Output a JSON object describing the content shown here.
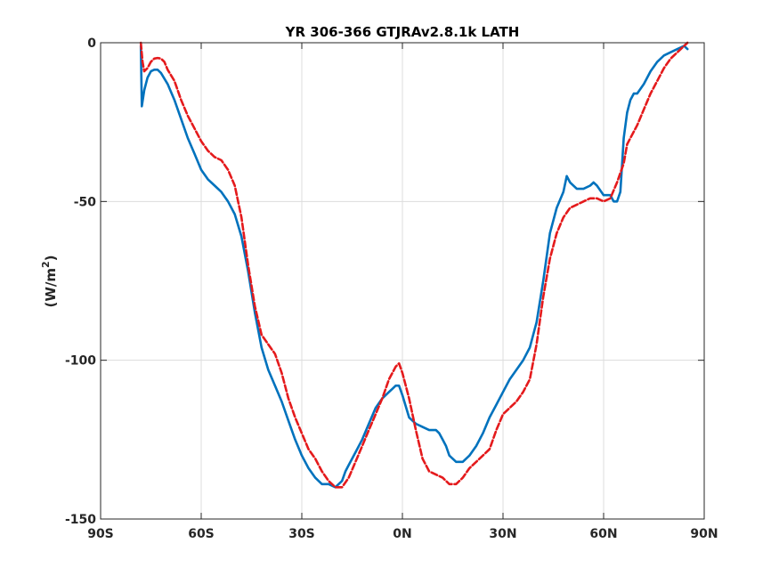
{
  "chart_data": {
    "type": "line",
    "title": "YR 306-366 GTJRAv2.8.1k LATH",
    "xlabel": "",
    "ylabel": "(W/m2)",
    "ylabel_parts": {
      "main": "(W/m",
      "sup": "2",
      "close": ")"
    },
    "xlim": [
      -90,
      90
    ],
    "ylim": [
      -150,
      0
    ],
    "grid": true,
    "x_ticks": [
      {
        "value": -90,
        "label": "90S"
      },
      {
        "value": -60,
        "label": "60S"
      },
      {
        "value": -30,
        "label": "30S"
      },
      {
        "value": 0,
        "label": "0N"
      },
      {
        "value": 30,
        "label": "30N"
      },
      {
        "value": 60,
        "label": "60N"
      },
      {
        "value": 90,
        "label": "90N"
      }
    ],
    "y_ticks": [
      {
        "value": 0,
        "label": "0"
      },
      {
        "value": -50,
        "label": "-50"
      },
      {
        "value": -100,
        "label": "-100"
      },
      {
        "value": -150,
        "label": "-150"
      }
    ],
    "series": [
      {
        "color": "#0072bd",
        "style": "solid",
        "points": [
          [
            -78,
            -1
          ],
          [
            -77.7,
            -20
          ],
          [
            -77,
            -15
          ],
          [
            -76,
            -11
          ],
          [
            -75,
            -9
          ],
          [
            -74,
            -8.5
          ],
          [
            -73,
            -8.5
          ],
          [
            -72,
            -9.5
          ],
          [
            -70,
            -13
          ],
          [
            -68,
            -18
          ],
          [
            -66,
            -24
          ],
          [
            -64,
            -30
          ],
          [
            -62,
            -35
          ],
          [
            -60,
            -40
          ],
          [
            -58,
            -43
          ],
          [
            -56,
            -45
          ],
          [
            -54,
            -47
          ],
          [
            -52,
            -50
          ],
          [
            -50,
            -54
          ],
          [
            -48,
            -61
          ],
          [
            -46,
            -72
          ],
          [
            -44,
            -85
          ],
          [
            -42,
            -96
          ],
          [
            -40,
            -103
          ],
          [
            -38,
            -108
          ],
          [
            -36,
            -113
          ],
          [
            -34,
            -119
          ],
          [
            -32,
            -125
          ],
          [
            -30,
            -130
          ],
          [
            -28,
            -134
          ],
          [
            -26,
            -137
          ],
          [
            -24,
            -139
          ],
          [
            -22,
            -139
          ],
          [
            -20,
            -140
          ],
          [
            -18,
            -138
          ],
          [
            -17,
            -135
          ],
          [
            -16,
            -133
          ],
          [
            -14,
            -129
          ],
          [
            -12,
            -125
          ],
          [
            -10,
            -120
          ],
          [
            -8,
            -115
          ],
          [
            -6,
            -112
          ],
          [
            -4,
            -110
          ],
          [
            -3,
            -109
          ],
          [
            -2,
            -108
          ],
          [
            -1,
            -108
          ],
          [
            0,
            -111
          ],
          [
            2,
            -118
          ],
          [
            4,
            -120
          ],
          [
            6,
            -121
          ],
          [
            8,
            -122
          ],
          [
            10,
            -122
          ],
          [
            11,
            -123
          ],
          [
            12,
            -125
          ],
          [
            13,
            -127
          ],
          [
            14,
            -130
          ],
          [
            16,
            -132
          ],
          [
            18,
            -132
          ],
          [
            20,
            -130
          ],
          [
            22,
            -127
          ],
          [
            24,
            -123
          ],
          [
            26,
            -118
          ],
          [
            28,
            -114
          ],
          [
            30,
            -110
          ],
          [
            32,
            -106
          ],
          [
            34,
            -103
          ],
          [
            36,
            -100
          ],
          [
            38,
            -96
          ],
          [
            40,
            -88
          ],
          [
            42,
            -75
          ],
          [
            44,
            -60
          ],
          [
            46,
            -52
          ],
          [
            48,
            -47
          ],
          [
            49,
            -42
          ],
          [
            50,
            -44
          ],
          [
            52,
            -46
          ],
          [
            54,
            -46
          ],
          [
            56,
            -45
          ],
          [
            57,
            -44
          ],
          [
            58,
            -45
          ],
          [
            60,
            -48
          ],
          [
            62,
            -48
          ],
          [
            63,
            -50
          ],
          [
            64,
            -50
          ],
          [
            65,
            -47
          ],
          [
            66,
            -30
          ],
          [
            67,
            -22
          ],
          [
            68,
            -18
          ],
          [
            69,
            -16
          ],
          [
            70,
            -16
          ],
          [
            72,
            -13
          ],
          [
            74,
            -9
          ],
          [
            76,
            -6
          ],
          [
            78,
            -4
          ],
          [
            80,
            -3
          ],
          [
            82,
            -2
          ],
          [
            84,
            -1
          ],
          [
            85,
            -2
          ]
        ]
      },
      {
        "color": "#e41a1c",
        "style": "dashed",
        "points": [
          [
            -78,
            0
          ],
          [
            -77.5,
            -6
          ],
          [
            -77,
            -9
          ],
          [
            -76,
            -8
          ],
          [
            -75,
            -6
          ],
          [
            -74,
            -5
          ],
          [
            -73,
            -4.8
          ],
          [
            -72,
            -5
          ],
          [
            -71,
            -6
          ],
          [
            -70,
            -8.5
          ],
          [
            -68,
            -12
          ],
          [
            -66,
            -18
          ],
          [
            -64,
            -23
          ],
          [
            -62,
            -27
          ],
          [
            -60,
            -31
          ],
          [
            -58,
            -34
          ],
          [
            -56,
            -36
          ],
          [
            -54,
            -37
          ],
          [
            -52,
            -40
          ],
          [
            -50,
            -45
          ],
          [
            -48,
            -55
          ],
          [
            -46,
            -70
          ],
          [
            -44,
            -83
          ],
          [
            -42,
            -92
          ],
          [
            -40,
            -95
          ],
          [
            -38,
            -98
          ],
          [
            -36,
            -104
          ],
          [
            -34,
            -112
          ],
          [
            -32,
            -118
          ],
          [
            -30,
            -123
          ],
          [
            -28,
            -128
          ],
          [
            -26,
            -131
          ],
          [
            -24,
            -135
          ],
          [
            -22,
            -138
          ],
          [
            -20,
            -140
          ],
          [
            -18,
            -140
          ],
          [
            -16,
            -137
          ],
          [
            -14,
            -132
          ],
          [
            -12,
            -127
          ],
          [
            -10,
            -122
          ],
          [
            -8,
            -117
          ],
          [
            -6,
            -112
          ],
          [
            -4,
            -106
          ],
          [
            -2,
            -102
          ],
          [
            -1,
            -101
          ],
          [
            0,
            -104
          ],
          [
            2,
            -112
          ],
          [
            4,
            -122
          ],
          [
            6,
            -131
          ],
          [
            8,
            -135
          ],
          [
            10,
            -136
          ],
          [
            12,
            -137
          ],
          [
            14,
            -139
          ],
          [
            16,
            -139
          ],
          [
            18,
            -137
          ],
          [
            20,
            -134
          ],
          [
            22,
            -132
          ],
          [
            24,
            -130
          ],
          [
            26,
            -128
          ],
          [
            28,
            -122
          ],
          [
            30,
            -117
          ],
          [
            32,
            -115
          ],
          [
            34,
            -113
          ],
          [
            36,
            -110
          ],
          [
            38,
            -106
          ],
          [
            40,
            -95
          ],
          [
            42,
            -80
          ],
          [
            44,
            -68
          ],
          [
            46,
            -60
          ],
          [
            48,
            -55
          ],
          [
            50,
            -52
          ],
          [
            52,
            -51
          ],
          [
            54,
            -50
          ],
          [
            56,
            -49
          ],
          [
            58,
            -49
          ],
          [
            60,
            -50
          ],
          [
            62,
            -49
          ],
          [
            64,
            -44
          ],
          [
            66,
            -38
          ],
          [
            67,
            -32
          ],
          [
            68,
            -30
          ],
          [
            70,
            -26
          ],
          [
            72,
            -21
          ],
          [
            74,
            -16
          ],
          [
            76,
            -12
          ],
          [
            78,
            -8
          ],
          [
            80,
            -5
          ],
          [
            82,
            -3
          ],
          [
            84,
            -1
          ],
          [
            85,
            0
          ]
        ]
      }
    ]
  }
}
